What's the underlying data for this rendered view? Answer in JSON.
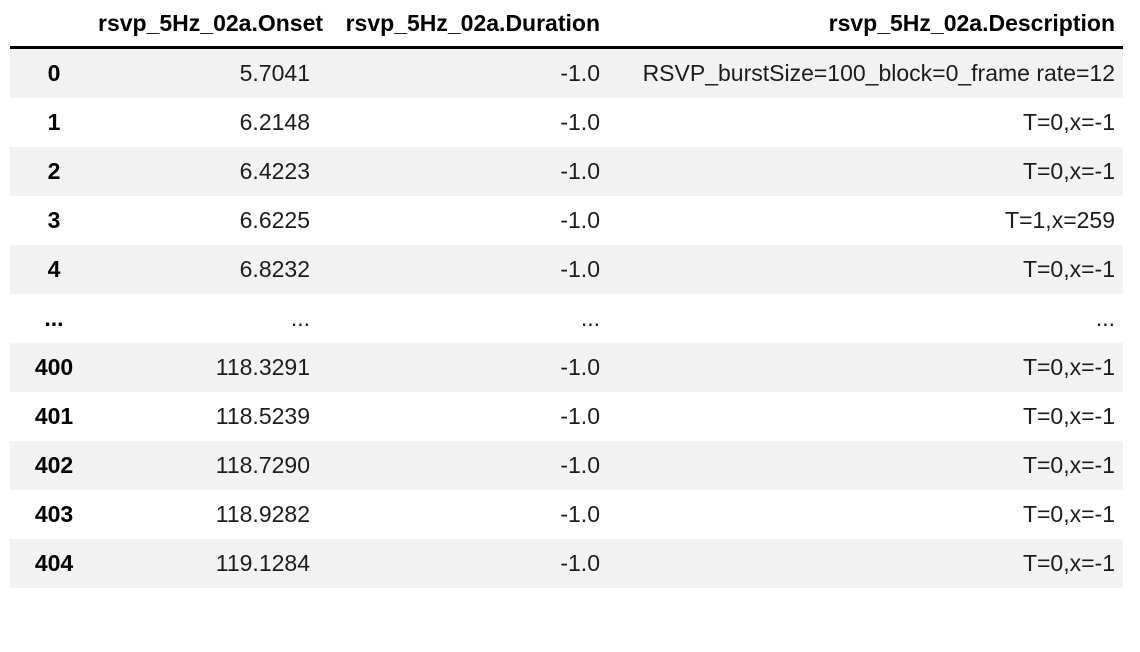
{
  "chart_data": {
    "type": "table",
    "columns": [
      "",
      "rsvp_5Hz_02a.Onset",
      "rsvp_5Hz_02a.Duration",
      "rsvp_5Hz_02a.Description"
    ],
    "rows": [
      [
        "0",
        "5.7041",
        "-1.0",
        "RSVP_burstSize=100_block=0_frame rate=12"
      ],
      [
        "1",
        "6.2148",
        "-1.0",
        "T=0,x=-1"
      ],
      [
        "2",
        "6.4223",
        "-1.0",
        "T=0,x=-1"
      ],
      [
        "3",
        "6.6225",
        "-1.0",
        "T=1,x=259"
      ],
      [
        "4",
        "6.8232",
        "-1.0",
        "T=0,x=-1"
      ],
      [
        "...",
        "...",
        "...",
        "..."
      ],
      [
        "400",
        "118.3291",
        "-1.0",
        "T=0,x=-1"
      ],
      [
        "401",
        "118.5239",
        "-1.0",
        "T=0,x=-1"
      ],
      [
        "402",
        "118.7290",
        "-1.0",
        "T=0,x=-1"
      ],
      [
        "403",
        "118.9282",
        "-1.0",
        "T=0,x=-1"
      ],
      [
        "404",
        "119.1284",
        "-1.0",
        "T=0,x=-1"
      ]
    ],
    "layout": {
      "striped": true,
      "stripe_rows": "odd",
      "header_rule": "bottom"
    }
  },
  "colors": {
    "stripe": "#f2f2f3",
    "header_border": "#000000",
    "header_text": "#000000",
    "cell_text": "#1c1c1c",
    "background": "#ffffff"
  }
}
